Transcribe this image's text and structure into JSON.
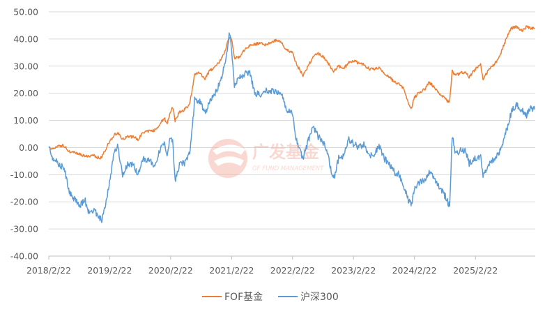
{
  "chart_data": {
    "type": "line",
    "title": "",
    "xlabel": "",
    "ylabel": "",
    "ylim": [
      -40,
      50
    ],
    "xlim": [
      "2018-02-22",
      "2026-02-15"
    ],
    "y_ticks": [
      "50.00",
      "40.00",
      "30.00",
      "20.00",
      "10.00",
      "0.00",
      "-10.00",
      "-20.00",
      "-30.00",
      "-40.00"
    ],
    "x_ticks": [
      {
        "label": "2018/2/22",
        "date": "2018-02-22"
      },
      {
        "label": "2019/2/22",
        "date": "2019-02-22"
      },
      {
        "label": "2020/2/22",
        "date": "2020-02-22"
      },
      {
        "label": "2021/2/22",
        "date": "2021-02-22"
      },
      {
        "label": "2022/2/22",
        "date": "2022-02-22"
      },
      {
        "label": "2023/2/22",
        "date": "2023-02-22"
      },
      {
        "label": "2024/2/22",
        "date": "2024-02-22"
      },
      {
        "label": "2025/2/22",
        "date": "2025-02-22"
      }
    ],
    "grid": {
      "horizontal": true,
      "vertical": false
    },
    "legend_position": "bottom-center",
    "series": [
      {
        "name": "FOF基金",
        "color": "#ED7D31",
        "points": [
          [
            "2018-02-22",
            0
          ],
          [
            "2018-03-20",
            -0.5
          ],
          [
            "2018-04-25",
            0.8
          ],
          [
            "2018-05-25",
            0.5
          ],
          [
            "2018-06-25",
            -1.5
          ],
          [
            "2018-07-25",
            -2.0
          ],
          [
            "2018-08-25",
            -2.5
          ],
          [
            "2018-09-25",
            -3.0
          ],
          [
            "2018-10-20",
            -3.5
          ],
          [
            "2018-11-20",
            -3.0
          ],
          [
            "2018-12-25",
            -4.0
          ],
          [
            "2019-01-10",
            -3.0
          ],
          [
            "2019-01-25",
            -1.0
          ],
          [
            "2019-02-25",
            2.5
          ],
          [
            "2019-03-20",
            4.5
          ],
          [
            "2019-04-10",
            5.5
          ],
          [
            "2019-05-10",
            3.0
          ],
          [
            "2019-06-10",
            4.0
          ],
          [
            "2019-07-10",
            4.0
          ],
          [
            "2019-08-10",
            3.0
          ],
          [
            "2019-09-10",
            5.5
          ],
          [
            "2019-10-20",
            6.0
          ],
          [
            "2019-11-20",
            6.5
          ],
          [
            "2019-12-20",
            8.5
          ],
          [
            "2020-01-15",
            11.0
          ],
          [
            "2020-02-01",
            8.5
          ],
          [
            "2020-02-20",
            13.0
          ],
          [
            "2020-03-05",
            15.0
          ],
          [
            "2020-03-20",
            10.0
          ],
          [
            "2020-04-15",
            13.0
          ],
          [
            "2020-05-15",
            14.0
          ],
          [
            "2020-06-15",
            16.0
          ],
          [
            "2020-07-05",
            23.0
          ],
          [
            "2020-07-15",
            27.0
          ],
          [
            "2020-08-15",
            27.5
          ],
          [
            "2020-09-15",
            25.5
          ],
          [
            "2020-10-15",
            28.5
          ],
          [
            "2020-11-15",
            29.5
          ],
          [
            "2020-12-15",
            32.0
          ],
          [
            "2021-01-10",
            35.0
          ],
          [
            "2021-02-10",
            41.0
          ],
          [
            "2021-02-22",
            40.0
          ],
          [
            "2021-03-10",
            33.0
          ],
          [
            "2021-04-10",
            33.5
          ],
          [
            "2021-05-10",
            36.0
          ],
          [
            "2021-06-10",
            37.5
          ],
          [
            "2021-07-10",
            38.0
          ],
          [
            "2021-08-10",
            38.5
          ],
          [
            "2021-09-10",
            38.0
          ],
          [
            "2021-10-10",
            38.5
          ],
          [
            "2021-11-10",
            39.5
          ],
          [
            "2021-12-15",
            39.0
          ],
          [
            "2022-01-15",
            36.0
          ],
          [
            "2022-02-22",
            35.0
          ],
          [
            "2022-03-15",
            31.0
          ],
          [
            "2022-04-25",
            26.5
          ],
          [
            "2022-05-25",
            30.0
          ],
          [
            "2022-06-25",
            33.5
          ],
          [
            "2022-07-25",
            34.5
          ],
          [
            "2022-08-25",
            33.5
          ],
          [
            "2022-09-25",
            31.0
          ],
          [
            "2022-10-25",
            28.0
          ],
          [
            "2022-11-25",
            30.0
          ],
          [
            "2022-12-25",
            29.0
          ],
          [
            "2023-01-25",
            31.5
          ],
          [
            "2023-02-22",
            32.0
          ],
          [
            "2023-03-25",
            31.0
          ],
          [
            "2023-04-25",
            30.5
          ],
          [
            "2023-05-25",
            29.0
          ],
          [
            "2023-06-25",
            29.0
          ],
          [
            "2023-07-25",
            29.5
          ],
          [
            "2023-08-25",
            27.0
          ],
          [
            "2023-09-25",
            26.0
          ],
          [
            "2023-10-25",
            24.0
          ],
          [
            "2023-11-25",
            23.5
          ],
          [
            "2023-12-25",
            21.0
          ],
          [
            "2024-01-20",
            16.0
          ],
          [
            "2024-02-05",
            14.5
          ],
          [
            "2024-02-22",
            18.5
          ],
          [
            "2024-03-25",
            20.5
          ],
          [
            "2024-04-25",
            21.5
          ],
          [
            "2024-05-20",
            24.0
          ],
          [
            "2024-06-25",
            22.0
          ],
          [
            "2024-07-25",
            19.5
          ],
          [
            "2024-08-25",
            18.0
          ],
          [
            "2024-09-20",
            16.5
          ],
          [
            "2024-10-05",
            28.5
          ],
          [
            "2024-10-25",
            26.5
          ],
          [
            "2024-11-25",
            27.5
          ],
          [
            "2024-12-25",
            28.0
          ],
          [
            "2025-01-15",
            26.0
          ],
          [
            "2025-02-22",
            29.0
          ],
          [
            "2025-03-25",
            30.5
          ],
          [
            "2025-04-08",
            25.5
          ],
          [
            "2025-05-25",
            29.5
          ],
          [
            "2025-06-25",
            31.5
          ],
          [
            "2025-07-25",
            35.0
          ],
          [
            "2025-08-25",
            40.0
          ],
          [
            "2025-09-25",
            44.0
          ],
          [
            "2025-10-25",
            44.5
          ],
          [
            "2025-11-25",
            43.0
          ],
          [
            "2025-12-25",
            44.5
          ],
          [
            "2026-01-20",
            44.0
          ],
          [
            "2026-02-12",
            44.0
          ]
        ]
      },
      {
        "name": "沪深300",
        "color": "#5B9BD5",
        "points": [
          [
            "2018-02-22",
            0
          ],
          [
            "2018-03-20",
            -4.0
          ],
          [
            "2018-04-25",
            -6.0
          ],
          [
            "2018-05-25",
            -8.0
          ],
          [
            "2018-06-25",
            -16.0
          ],
          [
            "2018-07-25",
            -19.0
          ],
          [
            "2018-08-25",
            -21.5
          ],
          [
            "2018-09-25",
            -19.0
          ],
          [
            "2018-10-20",
            -24.0
          ],
          [
            "2018-11-20",
            -23.0
          ],
          [
            "2018-12-25",
            -26.0
          ],
          [
            "2019-01-05",
            -27.0
          ],
          [
            "2019-01-25",
            -22.0
          ],
          [
            "2019-02-25",
            -12.0
          ],
          [
            "2019-03-20",
            -1.0
          ],
          [
            "2019-04-10",
            0.5
          ],
          [
            "2019-05-10",
            -10.0
          ],
          [
            "2019-06-10",
            -6.0
          ],
          [
            "2019-07-10",
            -6.0
          ],
          [
            "2019-08-10",
            -10.0
          ],
          [
            "2019-09-10",
            -4.0
          ],
          [
            "2019-10-20",
            -5.0
          ],
          [
            "2019-11-20",
            -7.0
          ],
          [
            "2019-12-20",
            -1.0
          ],
          [
            "2020-01-15",
            2.0
          ],
          [
            "2020-02-01",
            -4.0
          ],
          [
            "2020-02-20",
            3.5
          ],
          [
            "2020-03-05",
            3.0
          ],
          [
            "2020-03-20",
            -12.5
          ],
          [
            "2020-04-15",
            -6.0
          ],
          [
            "2020-05-15",
            -6.0
          ],
          [
            "2020-06-15",
            -2.0
          ],
          [
            "2020-07-05",
            10.0
          ],
          [
            "2020-07-15",
            18.0
          ],
          [
            "2020-08-15",
            17.0
          ],
          [
            "2020-09-15",
            12.5
          ],
          [
            "2020-10-15",
            17.0
          ],
          [
            "2020-11-15",
            20.0
          ],
          [
            "2020-12-15",
            24.0
          ],
          [
            "2021-01-10",
            30.0
          ],
          [
            "2021-02-10",
            42.5
          ],
          [
            "2021-02-22",
            36.0
          ],
          [
            "2021-03-10",
            23.0
          ],
          [
            "2021-04-10",
            26.0
          ],
          [
            "2021-05-10",
            27.0
          ],
          [
            "2021-06-10",
            28.0
          ],
          [
            "2021-07-10",
            20.0
          ],
          [
            "2021-08-10",
            19.5
          ],
          [
            "2021-09-10",
            21.5
          ],
          [
            "2021-10-10",
            20.5
          ],
          [
            "2021-11-10",
            21.0
          ],
          [
            "2021-12-15",
            20.0
          ],
          [
            "2022-01-15",
            14.0
          ],
          [
            "2022-02-22",
            13.0
          ],
          [
            "2022-03-15",
            3.0
          ],
          [
            "2022-04-25",
            -4.0
          ],
          [
            "2022-05-25",
            2.0
          ],
          [
            "2022-06-25",
            8.0
          ],
          [
            "2022-07-25",
            4.0
          ],
          [
            "2022-08-25",
            2.0
          ],
          [
            "2022-09-25",
            -4.0
          ],
          [
            "2022-10-25",
            -12.0
          ],
          [
            "2022-11-25",
            -4.0
          ],
          [
            "2022-12-25",
            -3.0
          ],
          [
            "2023-01-25",
            3.0
          ],
          [
            "2023-02-22",
            1.5
          ],
          [
            "2023-03-25",
            0.0
          ],
          [
            "2023-04-25",
            1.5
          ],
          [
            "2023-05-25",
            -3.0
          ],
          [
            "2023-06-25",
            -3.0
          ],
          [
            "2023-07-25",
            1.0
          ],
          [
            "2023-08-25",
            -4.0
          ],
          [
            "2023-09-25",
            -6.0
          ],
          [
            "2023-10-25",
            -9.0
          ],
          [
            "2023-11-25",
            -10.0
          ],
          [
            "2023-12-25",
            -15.0
          ],
          [
            "2024-01-20",
            -20.0
          ],
          [
            "2024-02-05",
            -21.0
          ],
          [
            "2024-02-22",
            -15.0
          ],
          [
            "2024-03-25",
            -13.0
          ],
          [
            "2024-04-25",
            -12.0
          ],
          [
            "2024-05-20",
            -9.0
          ],
          [
            "2024-06-25",
            -12.0
          ],
          [
            "2024-07-25",
            -15.0
          ],
          [
            "2024-08-25",
            -18.0
          ],
          [
            "2024-09-20",
            -21.5
          ],
          [
            "2024-10-05",
            4.5
          ],
          [
            "2024-10-25",
            -2.0
          ],
          [
            "2024-11-25",
            -1.0
          ],
          [
            "2024-12-25",
            -1.0
          ],
          [
            "2025-01-15",
            -6.0
          ],
          [
            "2025-02-22",
            -4.0
          ],
          [
            "2025-03-25",
            -3.0
          ],
          [
            "2025-04-08",
            -11.0
          ],
          [
            "2025-05-25",
            -5.0
          ],
          [
            "2025-06-25",
            -4.0
          ],
          [
            "2025-07-25",
            0.0
          ],
          [
            "2025-08-25",
            6.0
          ],
          [
            "2025-09-25",
            13.0
          ],
          [
            "2025-10-25",
            16.0
          ],
          [
            "2025-11-25",
            14.0
          ],
          [
            "2025-12-25",
            12.0
          ],
          [
            "2026-01-20",
            14.5
          ],
          [
            "2026-02-12",
            14.0
          ]
        ]
      }
    ]
  },
  "watermark": {
    "name_cn": "广发基金",
    "name_en": "GF FUND MANAGEMENT",
    "color": "#F6B9AE"
  }
}
